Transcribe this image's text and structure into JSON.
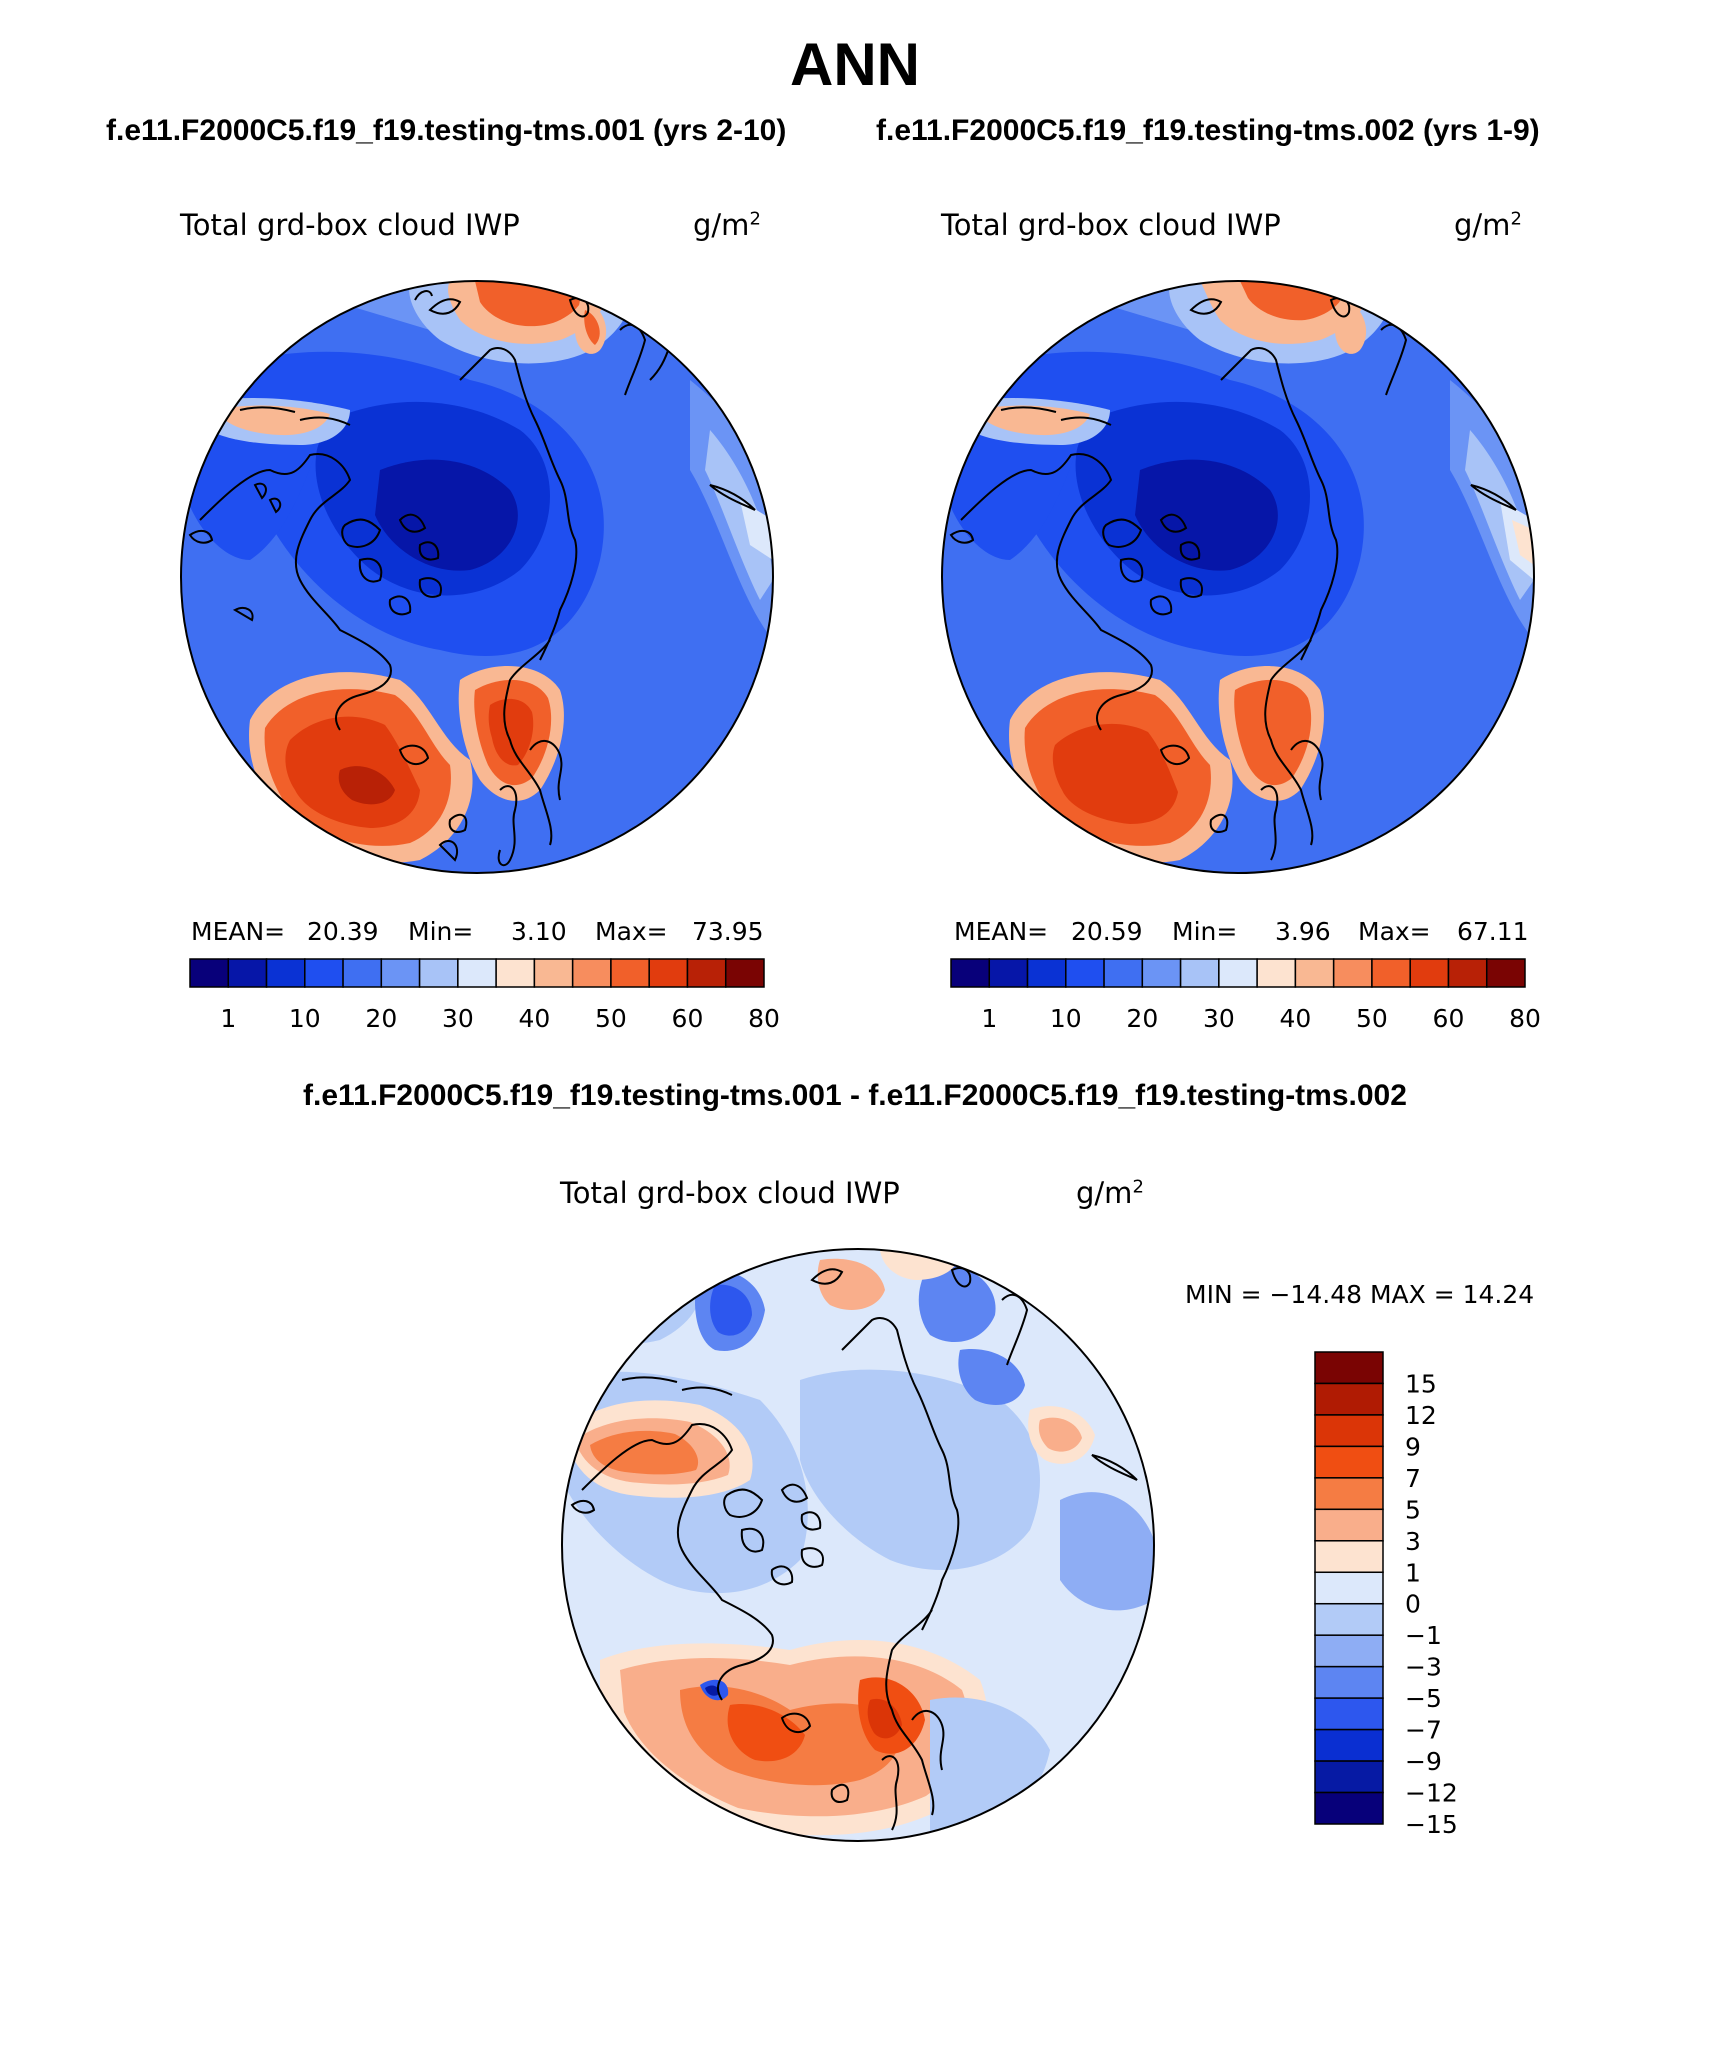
{
  "title": "ANN",
  "subtitles": {
    "left": "f.e11.F2000C5.f19_f19.testing-tms.001 (yrs 2-10)",
    "right": "f.e11.F2000C5.f19_f19.testing-tms.002 (yrs 1-9)",
    "diff": "f.e11.F2000C5.f19_f19.testing-tms.001 - f.e11.F2000C5.f19_f19.testing-tms.002"
  },
  "colors": {
    "abs_palette": [
      "#08007a",
      "#0616a8",
      "#0a32d4",
      "#1f4ff0",
      "#3f6ff2",
      "#6b94f5",
      "#a8c3f7",
      "#dce8fb",
      "#fde3d0",
      "#f9b893",
      "#f78d5e",
      "#f1602a",
      "#e13c0e",
      "#b82106",
      "#7a0403"
    ],
    "diff_palette": [
      "#7a0403",
      "#b01b03",
      "#db3507",
      "#f04e12",
      "#f57c43",
      "#f9ae8b",
      "#fde3d0",
      "#dce8fb",
      "#b2cbf7",
      "#8eadf4",
      "#5d85f2",
      "#2d57ee",
      "#0a2fd2",
      "#061aa4",
      "#07007a"
    ]
  },
  "chart_data": [
    {
      "type": "heatmap",
      "projection": "north-polar-stereographic",
      "title": "Total grd-box cloud IWP",
      "units_label": "g/m",
      "units_sup": "2",
      "mean_label": "MEAN=",
      "mean_value": "20.39",
      "min_label": "Min=",
      "min_value": "3.10",
      "max_label": "Max=",
      "max_value": "73.95",
      "colorbar_orientation": "horizontal",
      "colorbar_ticks": [
        "1",
        "10",
        "20",
        "30",
        "40",
        "50",
        "60",
        "80"
      ]
    },
    {
      "type": "heatmap",
      "projection": "north-polar-stereographic",
      "title": "Total grd-box cloud IWP",
      "units_label": "g/m",
      "units_sup": "2",
      "mean_label": "MEAN=",
      "mean_value": "20.59",
      "min_label": "Min=",
      "min_value": "3.96",
      "max_label": "Max=",
      "max_value": "67.11",
      "colorbar_orientation": "horizontal",
      "colorbar_ticks": [
        "1",
        "10",
        "20",
        "30",
        "40",
        "50",
        "60",
        "80"
      ]
    },
    {
      "type": "heatmap",
      "projection": "north-polar-stereographic",
      "title": "Total grd-box cloud IWP",
      "units_label": "g/m",
      "units_sup": "2",
      "minmax_text": "MIN = −14.48 MAX =  14.24",
      "colorbar_orientation": "vertical",
      "colorbar_ticks": [
        "15",
        "12",
        "9",
        "7",
        "5",
        "3",
        "1",
        "0",
        "−1",
        "−3",
        "−5",
        "−7",
        "−9",
        "−12",
        "−15"
      ]
    }
  ]
}
